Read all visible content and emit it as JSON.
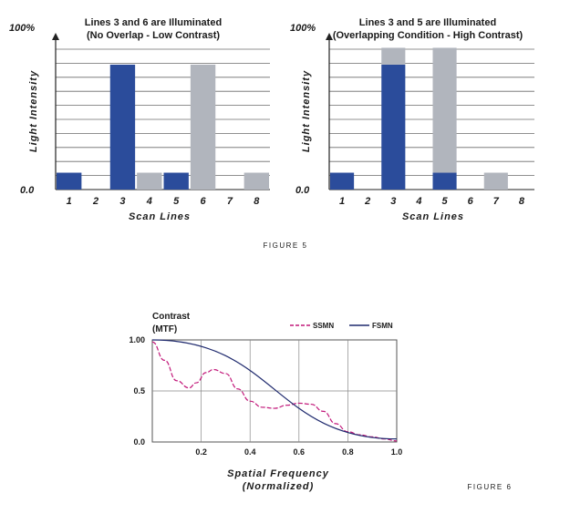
{
  "figure5": {
    "caption": "FIGURE 5",
    "chart_data": [
      {
        "type": "bar",
        "title": "Lines 3 and 6 are Illuminated",
        "subtitle": "(No Overlap - Low Contrast)",
        "xlabel": "Scan Lines",
        "ylabel": "Light Intensity",
        "ytop_label": "100%",
        "ybottom_label": "0.0",
        "ylim": [
          0,
          1
        ],
        "categories": [
          "1",
          "2",
          "3",
          "4",
          "5",
          "6",
          "7",
          "8"
        ],
        "series": [
          {
            "color": "#2b4c9b",
            "values": [
              0.12,
              0,
              0.89,
              0,
              0.12,
              0,
              0,
              0
            ]
          },
          {
            "color": "#b1b5bd",
            "values": [
              0,
              0,
              0,
              0.12,
              0,
              0.89,
              0,
              0.12
            ]
          }
        ],
        "stacked": false,
        "grid": true
      },
      {
        "type": "bar",
        "title": "Lines 3 and 5 are Illuminated",
        "subtitle": "(Overlapping Condition - High Contrast)",
        "xlabel": "Scan Lines",
        "ylabel": "Light Intensity",
        "ytop_label": "100%",
        "ybottom_label": "0.0",
        "ylim": [
          0,
          1
        ],
        "categories": [
          "1",
          "2",
          "3",
          "4",
          "5",
          "6",
          "7",
          "8"
        ],
        "series": [
          {
            "color": "#2b4c9b",
            "values": [
              0.12,
              0,
              0.89,
              0,
              0.12,
              0,
              0,
              0
            ]
          },
          {
            "color": "#b1b5bd",
            "values": [
              0,
              0,
              0.12,
              0,
              0.89,
              0,
              0.12,
              0
            ]
          }
        ],
        "stacked": true,
        "grid": true
      }
    ]
  },
  "figure6": {
    "caption": "FIGURE 6",
    "chart_data": {
      "type": "line",
      "title": "Contrast",
      "subtitle": "(MTF)",
      "xlabel": "Spatial Frequency",
      "xlabel2": "(Normalized)",
      "xlim": [
        0,
        1
      ],
      "ylim": [
        0,
        1
      ],
      "xticks": [
        "0.2",
        "0.4",
        "0.6",
        "0.8",
        "1.0"
      ],
      "yticks": [
        "0.0",
        "0.5",
        "1.00"
      ],
      "grid": true,
      "legend": "top-right",
      "series": [
        {
          "name": "SSMN",
          "color": "#c2187a",
          "dashed": true,
          "x": [
            0,
            0.05,
            0.1,
            0.15,
            0.18,
            0.22,
            0.25,
            0.3,
            0.35,
            0.4,
            0.45,
            0.5,
            0.55,
            0.6,
            0.65,
            0.7,
            0.75,
            0.8,
            0.85,
            0.9,
            0.95,
            1.0
          ],
          "y": [
            0.98,
            0.8,
            0.6,
            0.53,
            0.58,
            0.68,
            0.71,
            0.67,
            0.52,
            0.4,
            0.34,
            0.33,
            0.36,
            0.38,
            0.37,
            0.3,
            0.18,
            0.1,
            0.07,
            0.05,
            0.03,
            0.01
          ]
        },
        {
          "name": "FSMN",
          "color": "#1f2a6e",
          "dashed": false,
          "x": [
            0,
            1.0
          ],
          "y": [
            1.0,
            0.03
          ]
        }
      ]
    }
  }
}
